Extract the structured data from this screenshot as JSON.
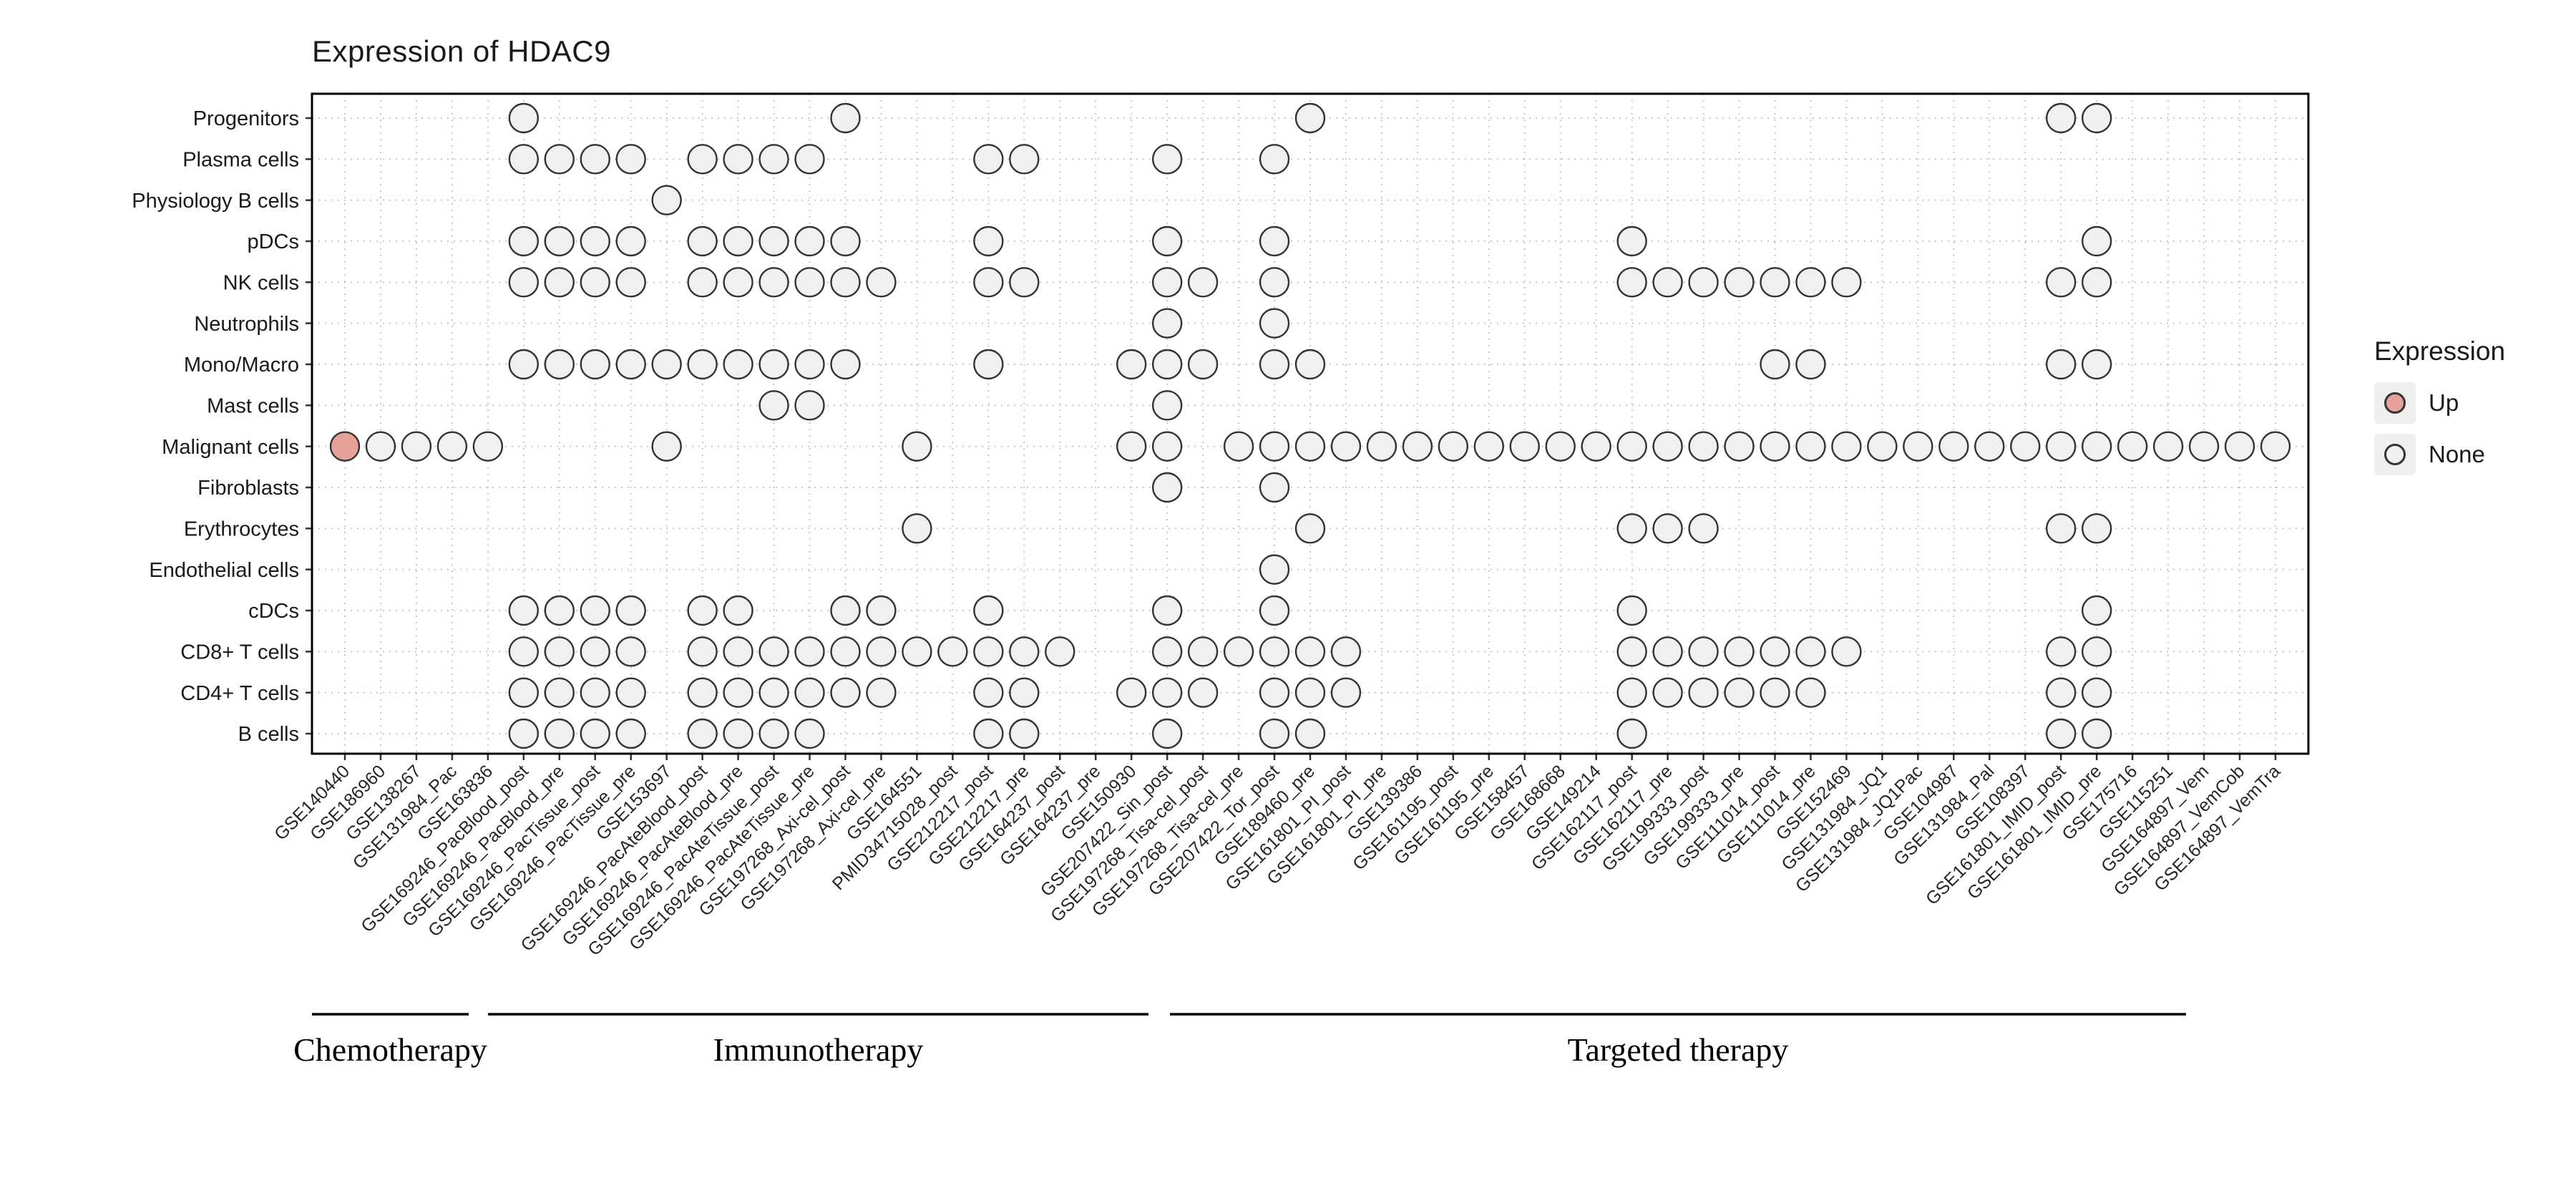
{
  "title": "Expression of HDAC9",
  "legend": {
    "title": "Expression",
    "items": [
      {
        "label": "Up",
        "value": "Up",
        "color": "#E6A198"
      },
      {
        "label": "None",
        "value": "None",
        "color": "#F0F0F0"
      }
    ]
  },
  "colors": {
    "up": "#E6A198",
    "none": "#F0F0F0",
    "dot_stroke": "#333333",
    "grid": "#C8C8C8",
    "panel_border": "#000000"
  },
  "chart_data": {
    "type": "scatter",
    "subtype": "dot-matrix",
    "title": "Expression of HDAC9",
    "legend_title": "Expression",
    "grid": "dotted",
    "rows": [
      "Progenitors",
      "Plasma cells",
      "Physiology B cells",
      "pDCs",
      "NK cells",
      "Neutrophils",
      "Mono/Macro",
      "Mast cells",
      "Malignant cells",
      "Fibroblasts",
      "Erythrocytes",
      "Endothelial cells",
      "cDCs",
      "CD8+ T cells",
      "CD4+ T cells",
      "B cells"
    ],
    "columns": [
      "GSE140440",
      "GSE186960",
      "GSE138267",
      "GSE131984_Pac",
      "GSE163836",
      "GSE169246_PacBlood_post",
      "GSE169246_PacBlood_pre",
      "GSE169246_PacTissue_post",
      "GSE169246_PacTissue_pre",
      "GSE153697",
      "GSE169246_PacAteBlood_post",
      "GSE169246_PacAteBlood_pre",
      "GSE169246_PacAteTissue_post",
      "GSE169246_PacAteTissue_pre",
      "GSE197268_Axi-cel_post",
      "GSE197268_Axi-cel_pre",
      "GSE164551",
      "PMID34715028_post",
      "GSE212217_post",
      "GSE212217_pre",
      "GSE164237_post",
      "GSE164237_pre",
      "GSE150930",
      "GSE207422_Sin_post",
      "GSE197268_Tisa-cel_post",
      "GSE197268_Tisa-cel_pre",
      "GSE207422_Tor_post",
      "GSE189460_pre",
      "GSE161801_PI_post",
      "GSE161801_PI_pre",
      "GSE139386",
      "GSE161195_post",
      "GSE161195_pre",
      "GSE158457",
      "GSE168668",
      "GSE149214",
      "GSE162117_post",
      "GSE162117_pre",
      "GSE199333_post",
      "GSE199333_pre",
      "GSE111014_post",
      "GSE111014_pre",
      "GSE152469",
      "GSE131984_JQ1",
      "GSE131984_JQ1Pac",
      "GSE104987",
      "GSE131984_Pal",
      "GSE108397",
      "GSE161801_IMID_post",
      "GSE161801_IMID_pre",
      "GSE175716",
      "GSE115251",
      "GSE164897_Vem",
      "GSE164897_VemCob",
      "GSE164897_VemTra"
    ],
    "column_groups": [
      {
        "label": "Chemotherapy",
        "start_column": "GSE140440",
        "end_column": "GSE163836"
      },
      {
        "label": "Immunotherapy",
        "start_column": "GSE169246_PacBlood_post",
        "end_column": "GSE150930"
      },
      {
        "label": "Targeted therapy",
        "start_column": "GSE207422_Sin_post",
        "end_column": "GSE164897_VemTra"
      }
    ],
    "dots_note": "column indices are 1-based into columns[]",
    "dots_up": {
      "Malignant cells": [
        1
      ]
    },
    "dots_none": {
      "Progenitors": [
        6,
        15,
        28,
        49,
        50
      ],
      "Plasma cells": [
        6,
        7,
        8,
        9,
        11,
        12,
        13,
        14,
        19,
        20,
        24,
        27
      ],
      "Physiology B cells": [
        10
      ],
      "pDCs": [
        6,
        7,
        8,
        9,
        11,
        12,
        13,
        14,
        15,
        19,
        24,
        27,
        37,
        50
      ],
      "NK cells": [
        6,
        7,
        8,
        9,
        11,
        12,
        13,
        14,
        15,
        16,
        19,
        20,
        24,
        25,
        27,
        37,
        38,
        39,
        40,
        41,
        42,
        43,
        49,
        50
      ],
      "Neutrophils": [
        24,
        27
      ],
      "Mono/Macro": [
        6,
        7,
        8,
        9,
        10,
        11,
        12,
        13,
        14,
        15,
        19,
        23,
        24,
        25,
        27,
        28,
        41,
        42,
        49,
        50
      ],
      "Mast cells": [
        13,
        14,
        24
      ],
      "Malignant cells": [
        2,
        3,
        4,
        5,
        10,
        17,
        23,
        24,
        26,
        27,
        28,
        29,
        30,
        31,
        32,
        33,
        34,
        35,
        36,
        37,
        38,
        39,
        40,
        41,
        42,
        43,
        44,
        45,
        46,
        47,
        48,
        49,
        50,
        51,
        52,
        53,
        54,
        55
      ],
      "Fibroblasts": [
        24,
        27
      ],
      "Erythrocytes": [
        17,
        28,
        37,
        38,
        39,
        49,
        50
      ],
      "Endothelial cells": [
        27
      ],
      "cDCs": [
        6,
        7,
        8,
        9,
        11,
        12,
        15,
        16,
        19,
        24,
        27,
        37,
        50
      ],
      "CD8+ T cells": [
        6,
        7,
        8,
        9,
        11,
        12,
        13,
        14,
        15,
        16,
        17,
        18,
        19,
        20,
        21,
        24,
        25,
        26,
        27,
        28,
        29,
        37,
        38,
        39,
        40,
        41,
        42,
        43,
        49,
        50
      ],
      "CD4+ T cells": [
        6,
        7,
        8,
        9,
        11,
        12,
        13,
        14,
        15,
        16,
        19,
        20,
        23,
        24,
        25,
        27,
        28,
        29,
        37,
        38,
        39,
        40,
        41,
        42,
        49,
        50
      ],
      "B cells": [
        6,
        7,
        8,
        9,
        11,
        12,
        13,
        14,
        19,
        20,
        24,
        27,
        28,
        37,
        49,
        50
      ]
    }
  }
}
